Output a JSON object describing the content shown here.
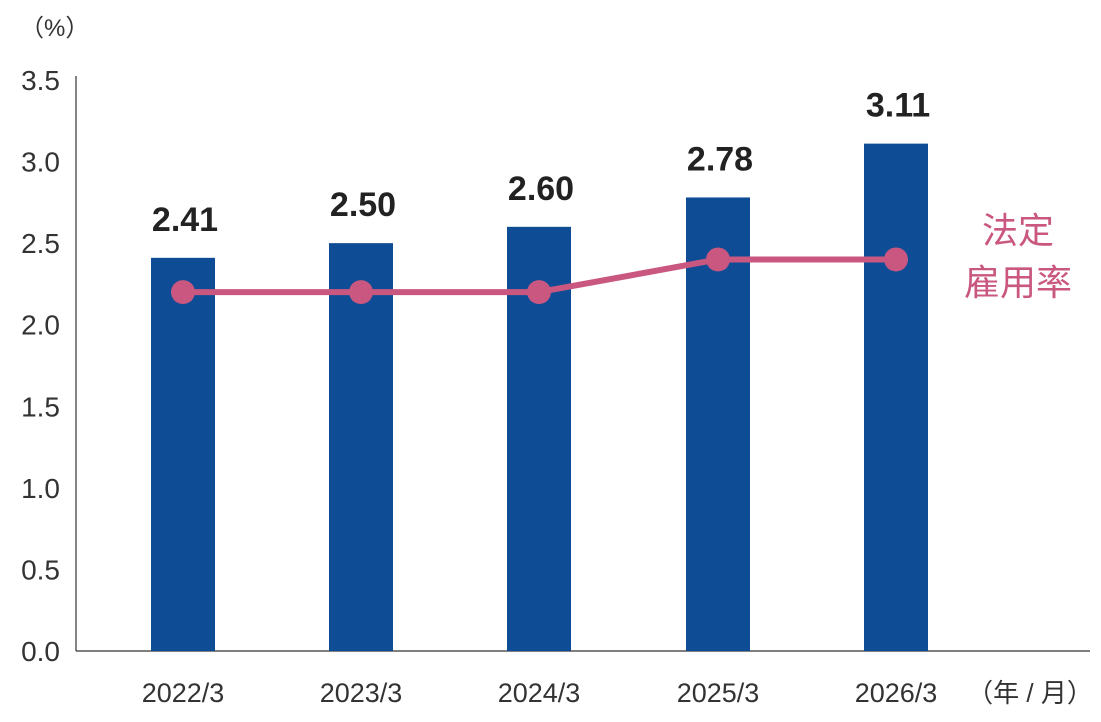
{
  "chart_data": {
    "type": "bar",
    "categories": [
      "2022/3",
      "2023/3",
      "2024/3",
      "2025/3",
      "2026/3"
    ],
    "series": [
      {
        "type": "bar",
        "values": [
          2.41,
          2.5,
          2.6,
          2.78,
          3.11
        ],
        "data_labels": [
          "2.41",
          "2.50",
          "2.60",
          "2.78",
          "3.11"
        ],
        "color": "#0f4c96"
      },
      {
        "type": "line",
        "name": "法定雇用率",
        "name_lines": [
          "法定",
          "雇用率"
        ],
        "values": [
          2.2,
          2.2,
          2.2,
          2.4,
          2.4
        ],
        "color": "#c9577f"
      }
    ],
    "ylabel": "（%）",
    "xlabel": "（年 / 月）",
    "ylim": [
      0,
      3.5
    ],
    "y_ticks": [
      "0.0",
      "0.5",
      "1.0",
      "1.5",
      "2.0",
      "2.5",
      "3.0",
      "3.5"
    ],
    "grid": false,
    "legend_placement": "right"
  }
}
